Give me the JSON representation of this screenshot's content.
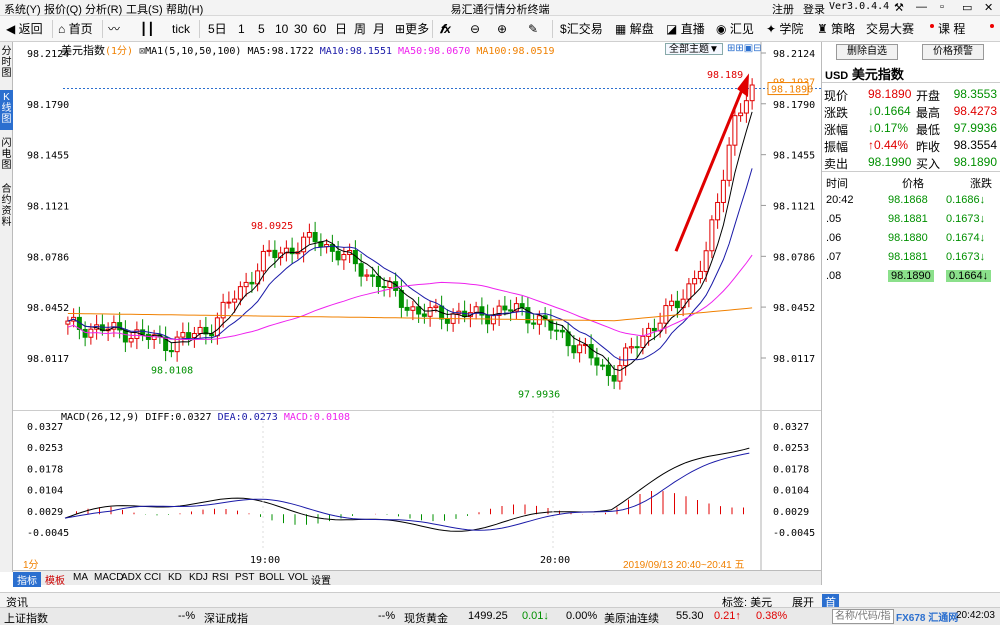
{
  "titlebar": {
    "menus": [
      "系统(Y)",
      "报价(Q)",
      "分析(R)",
      "工具(S)",
      "帮助(H)"
    ],
    "title": "易汇通行情分析终端",
    "login": "注册",
    "signin": "登录",
    "version": "Ver3.0.4.4"
  },
  "toolbar": {
    "back": "返回",
    "home": "首页",
    "tick": "tick",
    "periods": [
      "5日",
      "1",
      "5",
      "10",
      "30",
      "60",
      "日",
      "周",
      "月"
    ],
    "more": "更多",
    "fx": "𝒇x",
    "huijiaoyi": "汇交易",
    "jiepan": "解盘",
    "zhibo": "直播",
    "huijian": "汇见",
    "xueyuan": "学院",
    "celue": "策略",
    "dasai": "交易大赛",
    "kecheng": "课 程"
  },
  "lefttabs": [
    "分时图",
    "K线图",
    "闪电图",
    "合约资料"
  ],
  "main_chart": {
    "name": "美元指数",
    "period": "(1分)",
    "ma_legend": "MA1(5,10,50,100)",
    "ma5": "MA5:98.1722",
    "ma10": "MA10:98.1551",
    "ma50": "MA50:98.0670",
    "ma100": "MA100:98.0519",
    "theme_btn": "全部主题▼",
    "left_ticks": [
      "98.2124",
      "98.1790",
      "98.1455",
      "98.1121",
      "98.0786",
      "98.0452",
      "98.0117"
    ],
    "right_ticks": [
      "98.2124",
      "98.1937",
      "98.1790",
      "98.1455",
      "98.1121",
      "98.0786",
      "98.0452",
      "98.0117"
    ],
    "current_price": "98.1890",
    "high_label_right": "98.1890",
    "high_marker": "98.189",
    "annot_high": "98.0925",
    "annot_low1": "98.0108",
    "annot_low2": "97.9936",
    "colors": {
      "ma5": "#000000",
      "ma10": "#1a1aa8",
      "ma50": "#ee22ee",
      "ma100": "#f08000",
      "up": "#e00000",
      "down": "#009000"
    }
  },
  "macd_chart": {
    "legend": "MACD(26,12,9)",
    "diff": "DIFF:0.0327",
    "dea": "DEA:0.0273",
    "macd": "MACD:0.0108",
    "ticks": [
      "0.0327",
      "0.0253",
      "0.0178",
      "0.0104",
      "0.0029",
      "-0.0045"
    ],
    "time_labels": [
      "19:00",
      "20:00"
    ],
    "date_range": "2019/09/13  20:40~20:41  五",
    "interval": "1分"
  },
  "indicator_tabs": [
    "指标",
    "模板",
    "MA",
    "MACD",
    "ADX",
    "CCI",
    "KD",
    "KDJ",
    "RSI",
    "PST",
    "BOLL",
    "VOL",
    "设置"
  ],
  "right_panel": {
    "btn_delete": "删除自选",
    "btn_alert": "价格预警",
    "symbol": "USD",
    "name": "美元指数",
    "quotes": [
      {
        "l1": "现价",
        "v1": "98.1890",
        "c1": "up",
        "l2": "开盘",
        "v2": "98.3553",
        "c2": "dn"
      },
      {
        "l1": "涨跌",
        "v1": "↓0.1664",
        "c1": "dn",
        "l2": "最高",
        "v2": "98.4273",
        "c2": "up"
      },
      {
        "l1": "涨幅",
        "v1": "↓0.17%",
        "c1": "dn",
        "l2": "最低",
        "v2": "97.9936",
        "c2": "dn"
      },
      {
        "l1": "振幅",
        "v1": "↑0.44%",
        "c1": "up",
        "l2": "昨收",
        "v2": "98.3554",
        "c2": ""
      },
      {
        "l1": "卖出",
        "v1": "98.1990",
        "c1": "dn",
        "l2": "买入",
        "v2": "98.1890",
        "c2": "dn"
      }
    ],
    "trade_headers": [
      "时间",
      "价格",
      "涨跌"
    ],
    "trades": [
      {
        "t": "20:42",
        "p": "98.1868",
        "c": "0.1686↓"
      },
      {
        "t": ".05",
        "p": "98.1881",
        "c": "0.1673↓"
      },
      {
        "t": ".06",
        "p": "98.1880",
        "c": "0.1674↓"
      },
      {
        "t": ".07",
        "p": "98.1881",
        "c": "0.1673↓"
      },
      {
        "t": ".08",
        "p": "98.1890",
        "c": "0.1664↓"
      }
    ]
  },
  "infobar": {
    "left": "资讯",
    "tag": "标签: 美元",
    "expand": "展开",
    "badge": "首"
  },
  "ticker": {
    "items": [
      {
        "name": "上证指数",
        "val": "",
        "chg": "",
        "pct": "--%"
      },
      {
        "name": "深证成指",
        "val": "",
        "chg": "",
        "pct": "--%"
      },
      {
        "name": "现货黄金",
        "val": "1499.25",
        "chg": "0.01↓",
        "pct": "0.00%"
      },
      {
        "name": "美原油连续",
        "val": "55.30",
        "chg": "0.21↑",
        "pct": "0.38%"
      }
    ],
    "search_placeholder": "名称/代码/指标",
    "time": "20:42:03",
    "brand": "FX678 汇通网"
  }
}
